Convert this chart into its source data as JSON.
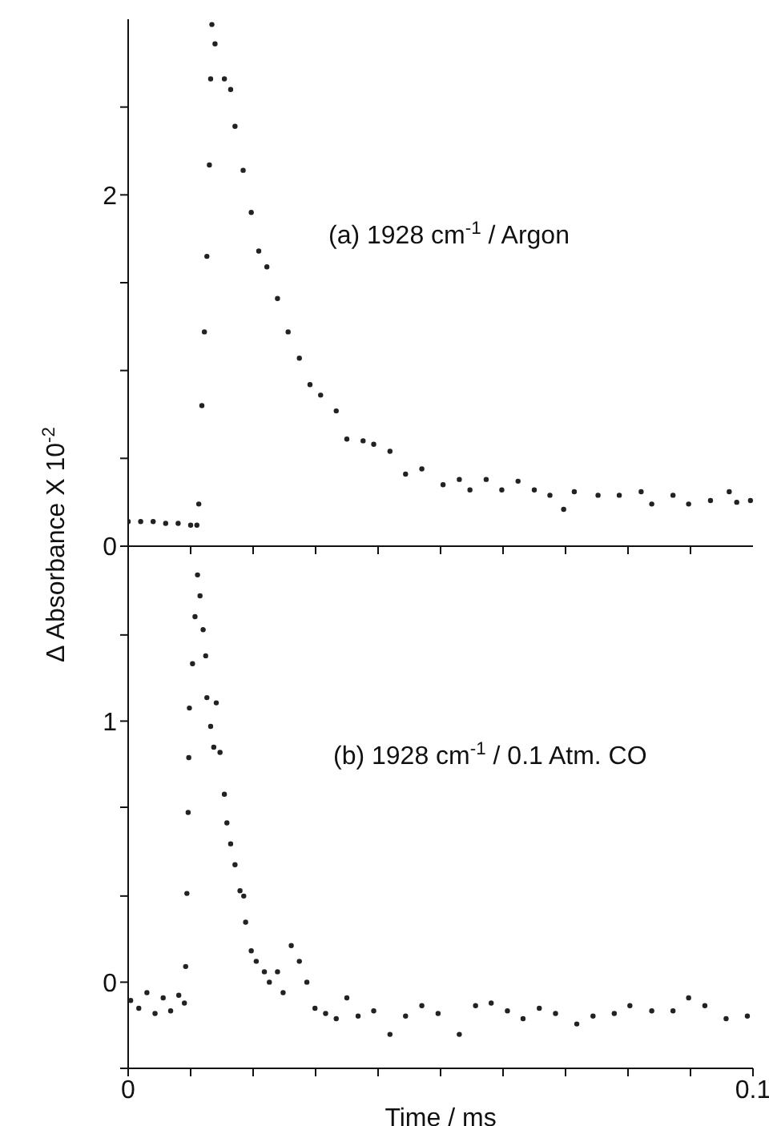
{
  "chart_data": [
    {
      "type": "scatter",
      "ylabel": "Δ Absorbance X 10$^{-2}$",
      "annotations": [
        "(a)  1928 cm$^{-1}$ / Argon"
      ],
      "marker": "circle",
      "tick_labels": "y",
      "xlim": [
        0,
        0.1
      ],
      "xticks": [
        {
          "value": 0.01,
          "label": null
        },
        {
          "value": 0.02,
          "label": null
        },
        {
          "value": 0.03,
          "label": null
        },
        {
          "value": 0.04,
          "label": null
        },
        {
          "value": 0.05,
          "label": null
        },
        {
          "value": 0.06,
          "label": null
        },
        {
          "value": 0.07,
          "label": null
        },
        {
          "value": 0.08,
          "label": null
        },
        {
          "value": 0.09,
          "label": null
        }
      ],
      "ylim": [
        0,
        3
      ],
      "yticks": [
        0,
        {
          "value": 0.5,
          "label": null
        },
        {
          "value": 1,
          "label": null
        },
        {
          "value": 1.5,
          "label": null
        },
        2,
        {
          "value": 2.5,
          "label": null
        }
      ],
      "series": [
        {
          "color": "#222222",
          "x": [
            0,
            0.002,
            0.004,
            0.006,
            0.008,
            0.01,
            0.011,
            0.0113,
            0.0118,
            0.0122,
            0.0126,
            0.013,
            0.0132,
            0.0134,
            0.0139,
            0.0154,
            0.0164,
            0.0171,
            0.0184,
            0.0197,
            0.0209,
            0.0222,
            0.0239,
            0.0256,
            0.0274,
            0.0291,
            0.0308,
            0.0333,
            0.035,
            0.0376,
            0.0393,
            0.0419,
            0.0444,
            0.047,
            0.0504,
            0.053,
            0.0547,
            0.0573,
            0.0598,
            0.0624,
            0.065,
            0.0675,
            0.0697,
            0.0714,
            0.0752,
            0.0786,
            0.0821,
            0.0838,
            0.0872,
            0.0897,
            0.0932,
            0.0962,
            0.0974,
            0.0996
          ],
          "values": [
            0.14,
            0.14,
            0.14,
            0.13,
            0.13,
            0.12,
            0.12,
            0.24,
            0.8,
            1.22,
            1.65,
            2.17,
            2.66,
            2.97,
            2.86,
            2.66,
            2.6,
            2.39,
            2.14,
            1.9,
            1.68,
            1.59,
            1.41,
            1.22,
            1.07,
            0.92,
            0.86,
            0.77,
            0.61,
            0.6,
            0.58,
            0.54,
            0.41,
            0.44,
            0.35,
            0.38,
            0.32,
            0.38,
            0.32,
            0.37,
            0.32,
            0.29,
            0.21,
            0.31,
            0.29,
            0.29,
            0.31,
            0.24,
            0.29,
            0.24,
            0.26,
            0.31,
            0.25,
            0.26
          ]
        }
      ]
    },
    {
      "type": "scatter",
      "xlabel": "Time / ms",
      "annotations": [
        "(b)  1928 cm$^{-1}$ / 0.1 Atm. CO"
      ],
      "marker": "circle",
      "xlim": [
        0,
        0.1
      ],
      "xticks": [
        0,
        {
          "value": 0.01,
          "label": null
        },
        {
          "value": 0.02,
          "label": null
        },
        {
          "value": 0.03,
          "label": null
        },
        {
          "value": 0.04,
          "label": null
        },
        {
          "value": 0.05,
          "label": null
        },
        {
          "value": 0.06,
          "label": null
        },
        {
          "value": 0.07,
          "label": null
        },
        {
          "value": 0.08,
          "label": null
        },
        {
          "value": 0.09,
          "label": null
        },
        0.1
      ],
      "ylim": [
        -0.33,
        1.67
      ],
      "yticks": [
        {
          "value": -0.33,
          "label": null
        },
        0,
        {
          "value": 0.33,
          "label": null
        },
        {
          "value": 0.67,
          "label": null
        },
        1,
        {
          "value": 1.33,
          "label": null
        }
      ],
      "series": [
        {
          "color": "#222222",
          "x": [
            0.0004,
            0.0017,
            0.003,
            0.0043,
            0.0056,
            0.0068,
            0.0081,
            0.009,
            0.0092,
            0.0094,
            0.0096,
            0.0097,
            0.0098,
            0.0103,
            0.0107,
            0.0111,
            0.0115,
            0.012,
            0.0124,
            0.0126,
            0.0132,
            0.0137,
            0.0141,
            0.0147,
            0.0154,
            0.0158,
            0.0164,
            0.0171,
            0.0179,
            0.0185,
            0.0188,
            0.0197,
            0.0205,
            0.0218,
            0.0226,
            0.0239,
            0.0248,
            0.0261,
            0.0274,
            0.0286,
            0.0299,
            0.0316,
            0.0333,
            0.035,
            0.0368,
            0.0393,
            0.0419,
            0.0444,
            0.047,
            0.0496,
            0.053,
            0.0556,
            0.0581,
            0.0607,
            0.0632,
            0.0658,
            0.0684,
            0.0718,
            0.0744,
            0.0778,
            0.0803,
            0.0838,
            0.0872,
            0.0897,
            0.0923,
            0.0957,
            0.0991
          ],
          "values": [
            -0.07,
            -0.1,
            -0.04,
            -0.12,
            -0.06,
            -0.11,
            -0.05,
            -0.08,
            0.06,
            0.34,
            0.65,
            0.86,
            1.05,
            1.22,
            1.4,
            1.56,
            1.48,
            1.35,
            1.25,
            1.09,
            0.98,
            0.9,
            1.07,
            0.88,
            0.72,
            0.61,
            0.53,
            0.45,
            0.35,
            0.33,
            0.23,
            0.12,
            0.08,
            0.04,
            0,
            0.04,
            -0.04,
            0.14,
            0.08,
            0,
            -0.1,
            -0.12,
            -0.14,
            -0.06,
            -0.13,
            -0.11,
            -0.2,
            -0.13,
            -0.09,
            -0.12,
            -0.2,
            -0.09,
            -0.08,
            -0.11,
            -0.14,
            -0.1,
            -0.12,
            -0.16,
            -0.13,
            -0.12,
            -0.09,
            -0.11,
            -0.11,
            -0.06,
            -0.09,
            -0.14,
            -0.13
          ]
        }
      ]
    }
  ]
}
